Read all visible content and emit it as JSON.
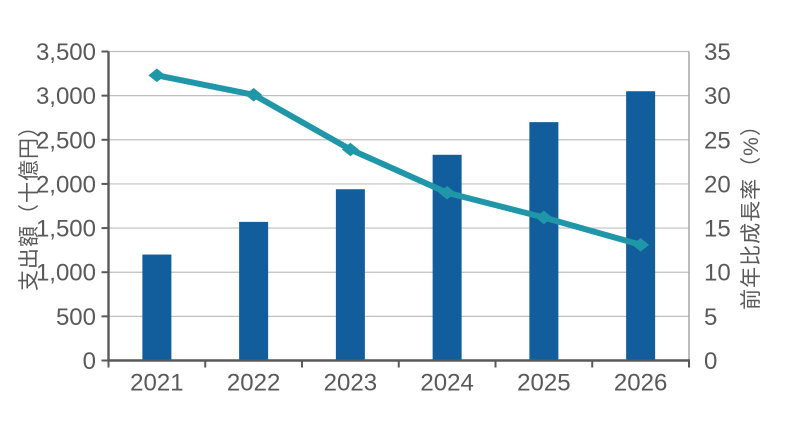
{
  "chart_data": {
    "type": "bar",
    "subtype": "combo-bar-line",
    "categories": [
      "2021",
      "2022",
      "2023",
      "2024",
      "2025",
      "2026"
    ],
    "series": [
      {
        "name": "支出額",
        "type": "bar",
        "axis": "left",
        "values": [
          1200,
          1570,
          1940,
          2330,
          2700,
          3050
        ],
        "color": "#125E9C"
      },
      {
        "name": "前年比成長率",
        "type": "line",
        "axis": "right",
        "values": [
          32.3,
          30.1,
          23.9,
          19.0,
          16.2,
          13.1
        ],
        "color": "#2097A8",
        "marker": "diamond"
      }
    ],
    "left_axis": {
      "label": "支出額（十億円）",
      "min": 0,
      "max": 3500,
      "step": 500,
      "tick_labels": [
        "0",
        "500",
        "1,000",
        "1,500",
        "2,000",
        "2,500",
        "3,000",
        "3,500"
      ]
    },
    "right_axis": {
      "label": "前年比成長率（%）",
      "min": 0,
      "max": 35,
      "step": 5,
      "tick_labels": [
        "0",
        "5",
        "10",
        "15",
        "20",
        "25",
        "30",
        "35"
      ]
    },
    "grid": true,
    "legend": "none"
  },
  "colors": {
    "bar": "#125E9C",
    "line": "#2097A8",
    "gridline": "#BFBFBF",
    "plot_border": "#A6A6A6",
    "axis_line": "#595959",
    "tick_text": "#595959",
    "background": "#FFFFFF"
  }
}
